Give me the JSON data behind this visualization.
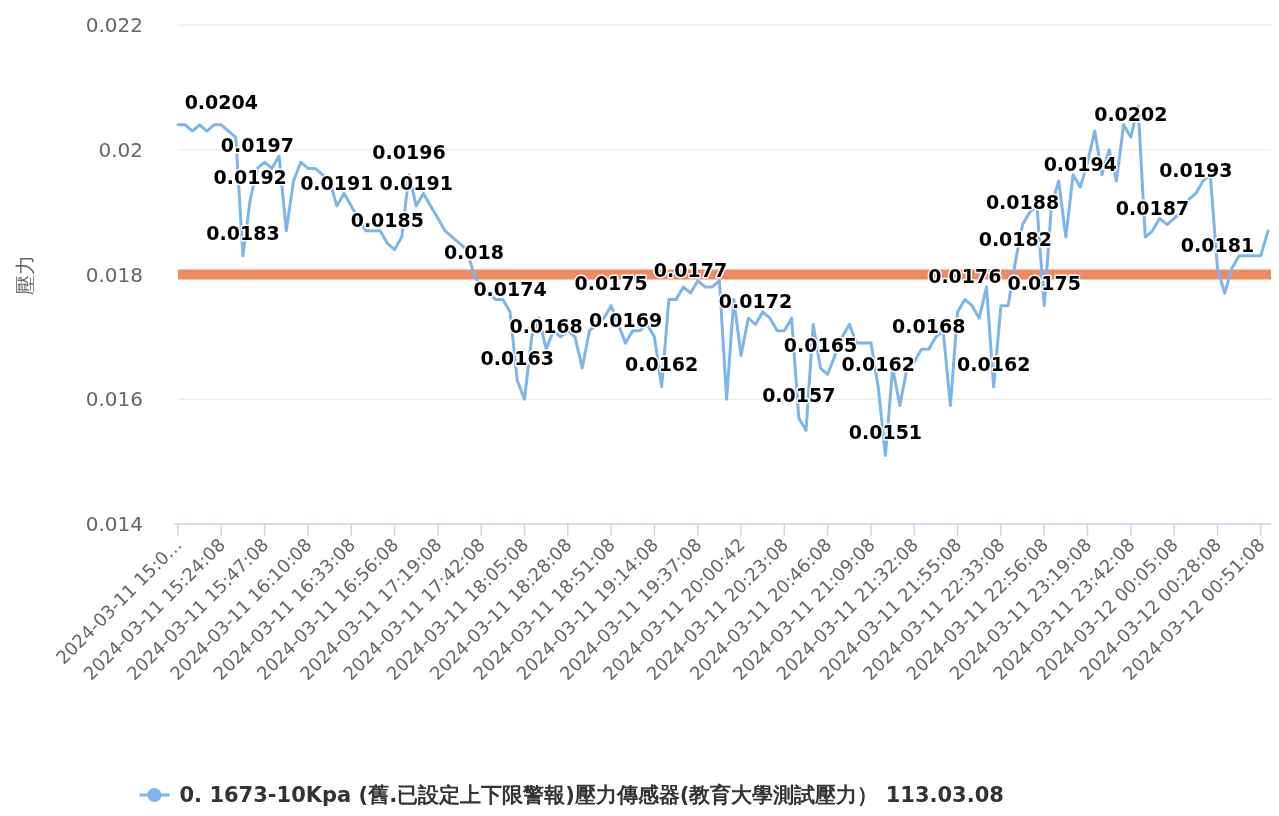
{
  "chart_data": {
    "type": "line",
    "ylabel": "壓力",
    "categories": [
      "2024-03-11 15:0…",
      null,
      null,
      null,
      null,
      null,
      "2024-03-11 15:24:08",
      null,
      null,
      null,
      null,
      null,
      "2024-03-11 15:47:08",
      null,
      null,
      null,
      null,
      null,
      "2024-03-11 16:10:08",
      null,
      null,
      null,
      null,
      null,
      "2024-03-11 16:33:08",
      null,
      null,
      null,
      null,
      null,
      "2024-03-11 16:56:08",
      null,
      null,
      null,
      null,
      null,
      "2024-03-11 17:19:08",
      null,
      null,
      null,
      null,
      null,
      "2024-03-11 17:42:08",
      null,
      null,
      null,
      null,
      null,
      "2024-03-11 18:05:08",
      null,
      null,
      null,
      null,
      null,
      "2024-03-11 18:28:08",
      null,
      null,
      null,
      null,
      null,
      "2024-03-11 18:51:08",
      null,
      null,
      null,
      null,
      null,
      "2024-03-11 19:14:08",
      null,
      null,
      null,
      null,
      null,
      "2024-03-11 19:37:08",
      null,
      null,
      null,
      null,
      null,
      "2024-03-11 20:00:42",
      null,
      null,
      null,
      null,
      null,
      "2024-03-11 20:23:08",
      null,
      null,
      null,
      null,
      null,
      "2024-03-11 20:46:08",
      null,
      null,
      null,
      null,
      null,
      "2024-03-11 21:09:08",
      null,
      null,
      null,
      null,
      null,
      "2024-03-11 21:32:08",
      null,
      null,
      null,
      null,
      null,
      "2024-03-11 21:55:08",
      null,
      null,
      null,
      null,
      null,
      "2024-03-11 22:33:08",
      null,
      null,
      null,
      null,
      null,
      "2024-03-11 22:56:08",
      null,
      null,
      null,
      null,
      null,
      "2024-03-11 23:19:08",
      null,
      null,
      null,
      null,
      null,
      "2024-03-11 23:42:08",
      null,
      null,
      null,
      null,
      null,
      "2024-03-12 00:05:08",
      null,
      null,
      null,
      null,
      null,
      "2024-03-12 00:28:08",
      null,
      null,
      null,
      null,
      null,
      "2024-03-12 00:51:08",
      null
    ],
    "series": [
      {
        "name": "0. 1673-10Kpa (舊.已設定上下限警報)壓力傳感器(教育大學測試壓力） 113.03.08",
        "color": "#7cb5ec",
        "values": [
          0.0204,
          0.0204,
          0.0203,
          0.0204,
          0.0203,
          0.0204,
          0.0204,
          0.0203,
          0.0202,
          0.0183,
          0.0192,
          0.0197,
          0.0198,
          0.0197,
          0.0199,
          0.0187,
          0.0195,
          0.0198,
          0.0197,
          0.0197,
          0.0196,
          0.0195,
          0.0191,
          0.0193,
          0.0191,
          0.0189,
          0.0187,
          0.0187,
          0.0187,
          0.0185,
          0.0184,
          0.0186,
          0.0196,
          0.0191,
          0.0193,
          0.0191,
          0.0189,
          0.0187,
          0.0186,
          0.0185,
          0.0184,
          0.018,
          0.0178,
          0.0177,
          0.0176,
          0.0176,
          0.0174,
          0.0163,
          0.016,
          0.017,
          0.0173,
          0.0168,
          0.0171,
          0.017,
          0.0171,
          0.017,
          0.0165,
          0.0171,
          0.0172,
          0.0173,
          0.0175,
          0.0172,
          0.0169,
          0.0171,
          0.0171,
          0.0172,
          0.017,
          0.0162,
          0.0176,
          0.0176,
          0.0178,
          0.0177,
          0.0179,
          0.0178,
          0.0178,
          0.0179,
          0.016,
          0.0176,
          0.0167,
          0.0173,
          0.0172,
          0.0174,
          0.0173,
          0.0171,
          0.0171,
          0.0173,
          0.0157,
          0.0155,
          0.0172,
          0.0165,
          0.0164,
          0.0167,
          0.017,
          0.0172,
          0.0169,
          0.0169,
          0.0169,
          0.0162,
          0.0151,
          0.0165,
          0.0159,
          0.0165,
          0.0166,
          0.0168,
          0.0168,
          0.017,
          0.0171,
          0.0159,
          0.0174,
          0.0176,
          0.0175,
          0.0173,
          0.0178,
          0.0162,
          0.0175,
          0.0175,
          0.0182,
          0.0188,
          0.019,
          0.0191,
          0.0175,
          0.0191,
          0.0195,
          0.0186,
          0.0196,
          0.0194,
          0.0198,
          0.0203,
          0.0196,
          0.02,
          0.0195,
          0.0204,
          0.0202,
          0.0207,
          0.0186,
          0.0187,
          0.0189,
          0.0188,
          0.0189,
          0.019,
          0.0192,
          0.0193,
          0.0195,
          0.0196,
          0.0181,
          0.0177,
          0.0181,
          0.0183,
          0.0183,
          0.0183,
          0.0183,
          0.0187
        ],
        "value_labels": [
          null,
          null,
          null,
          null,
          null,
          null,
          "0.0204",
          null,
          null,
          "0.0183",
          "0.0192",
          "0.0197",
          null,
          null,
          null,
          null,
          null,
          null,
          null,
          null,
          null,
          null,
          "0.0191",
          null,
          null,
          null,
          null,
          null,
          null,
          "0.0185",
          null,
          null,
          "0.0196",
          "0.0191",
          null,
          null,
          null,
          null,
          null,
          null,
          null,
          "0.018",
          null,
          null,
          null,
          null,
          "0.0174",
          "0.0163",
          null,
          null,
          null,
          "0.0168",
          null,
          null,
          null,
          null,
          null,
          null,
          null,
          null,
          "0.0175",
          null,
          "0.0169",
          null,
          null,
          null,
          null,
          "0.0162",
          null,
          null,
          null,
          "0.0177",
          null,
          null,
          null,
          null,
          null,
          null,
          null,
          null,
          "0.0172",
          null,
          null,
          null,
          null,
          null,
          "0.0157",
          null,
          null,
          "0.0165",
          null,
          null,
          null,
          null,
          null,
          null,
          null,
          "0.0162",
          "0.0151",
          null,
          null,
          null,
          null,
          null,
          "0.0168",
          null,
          null,
          null,
          null,
          "0.0176",
          null,
          null,
          null,
          "0.0162",
          null,
          null,
          "0.0182",
          "0.0188",
          null,
          null,
          "0.0175",
          null,
          null,
          null,
          null,
          "0.0194",
          null,
          null,
          null,
          null,
          null,
          null,
          "0.0202",
          null,
          null,
          "0.0187",
          null,
          null,
          null,
          null,
          null,
          "0.0193",
          null,
          null,
          "0.0181",
          null,
          null,
          null,
          null,
          null,
          null,
          null
        ]
      }
    ],
    "ylim": [
      0.014,
      0.022
    ],
    "yticks": [
      0.014,
      0.016,
      0.018,
      0.02,
      0.022
    ],
    "grid": "y",
    "legend": "bottom",
    "ref_lines": [
      {
        "axis": "y",
        "value": 0.018,
        "color": "#ef8a62"
      }
    ]
  }
}
